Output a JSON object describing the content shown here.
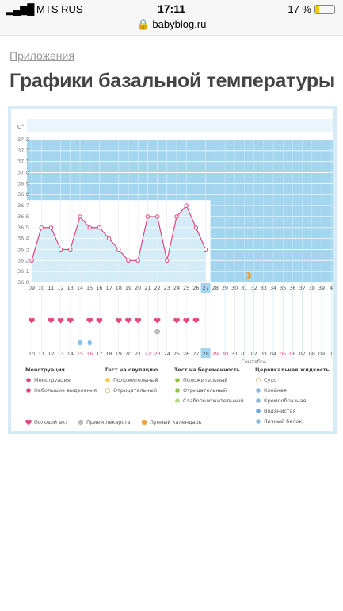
{
  "status": {
    "carrier": "MTS RUS",
    "time": "17:11",
    "battery": "17 %"
  },
  "url": "babyblog.ru",
  "breadcrumb": "Приложения",
  "title": "Графики базальной температуры",
  "chart_data": {
    "type": "line",
    "y_label": "C°",
    "categories": [
      "09",
      "10",
      "11",
      "12",
      "13",
      "14",
      "15",
      "16",
      "17",
      "18",
      "19",
      "20",
      "21",
      "22",
      "23",
      "24",
      "25",
      "26",
      "27",
      "28",
      "29",
      "30",
      "31",
      "32",
      "33",
      "34",
      "35",
      "36",
      "37",
      "38",
      "39",
      "4"
    ],
    "dates": [
      "10",
      "11",
      "12",
      "13",
      "14",
      "15",
      "16",
      "17",
      "18",
      "19",
      "20",
      "21",
      "22",
      "23",
      "24",
      "25",
      "26",
      "27",
      "28",
      "29",
      "30",
      "31",
      "01",
      "02",
      "03",
      "04",
      "05",
      "06",
      "07",
      "08",
      "09",
      "1"
    ],
    "month": "Сентябрь",
    "values": [
      36.2,
      36.5,
      36.5,
      36.3,
      36.3,
      36.6,
      36.5,
      36.5,
      36.4,
      36.3,
      36.2,
      36.2,
      36.6,
      36.6,
      36.2,
      36.6,
      36.7,
      36.5,
      36.3,
      null,
      null,
      null,
      null,
      null,
      null,
      null,
      null,
      null,
      null,
      null,
      null,
      null
    ],
    "color": "#e0457b",
    "ylim": [
      36.0,
      37.3
    ],
    "yticks": [
      {
        "value": 36.0,
        "label": "36.0"
      },
      36.1,
      36.2,
      36.3,
      36.4,
      36.5,
      36.6,
      36.7,
      36.8,
      36.9,
      {
        "value": 37.0,
        "label": "37.0"
      },
      37.1,
      37.2,
      37.3
    ],
    "grid": true,
    "highlight": "27",
    "red_dates": [
      "15",
      "16",
      "22",
      "23",
      "29",
      "30",
      "05",
      "06"
    ],
    "intercourse": [
      "09",
      "11",
      "12",
      "13",
      "15",
      "16",
      "18",
      "19",
      "20",
      "22",
      "24",
      "25",
      "26"
    ],
    "medication": [
      "22"
    ],
    "menstruation_dates": [
      "15",
      "16"
    ],
    "moon": [
      "31"
    ],
    "legend": [
      {
        "title": "Менструация",
        "items": [
          "Менструация",
          "Небольшие выделения"
        ]
      },
      {
        "title": "Тест на овуляцию",
        "items": [
          "Положительный",
          "Отрицательный"
        ]
      },
      {
        "title": "Тест на беременность",
        "items": [
          "Положительный",
          "Отрицательный",
          "Слабоположительный"
        ]
      },
      {
        "title": "Цервикальная жидкость",
        "items": [
          "Сухо",
          "Клейкая",
          "Кремообразная",
          "Водянистая",
          "Яичный белок"
        ]
      }
    ],
    "legend_bottom": [
      "Половой акт",
      "Прием лекарств",
      "Лунный календарь"
    ]
  }
}
